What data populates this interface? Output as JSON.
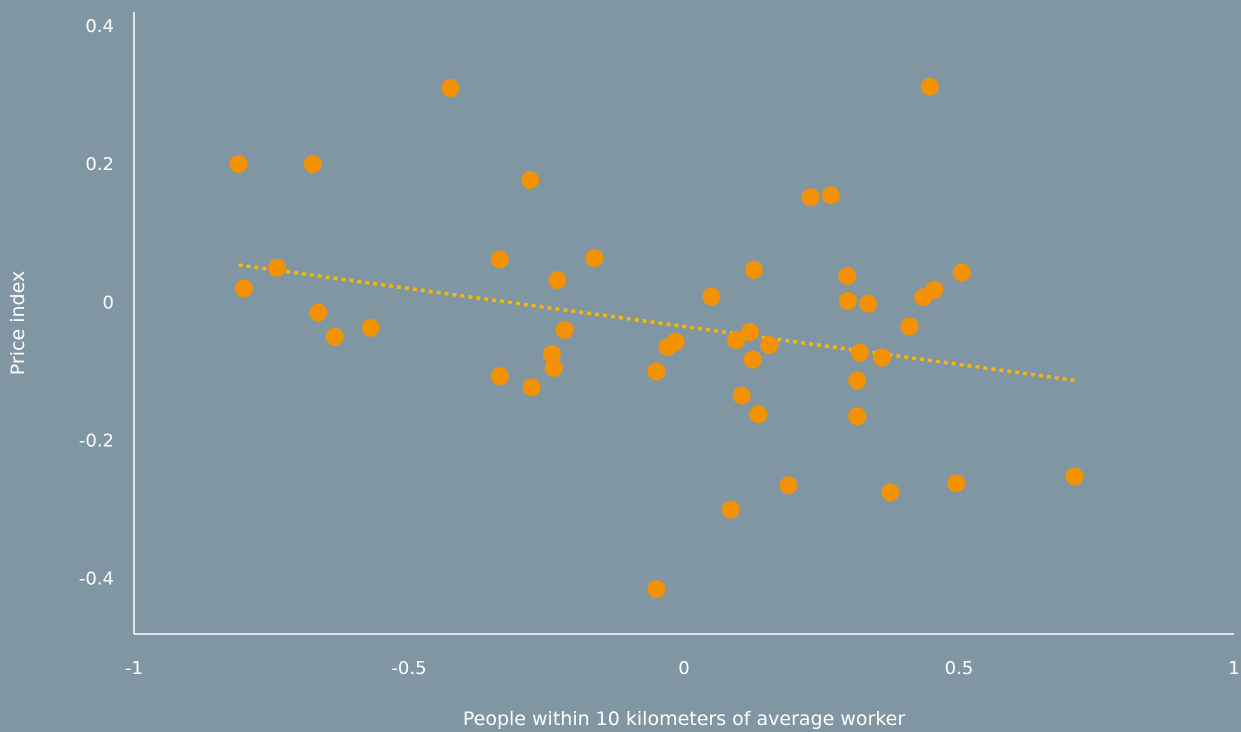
{
  "chart_data": {
    "type": "scatter",
    "title": "",
    "xlabel": "People within 10 kilometers of average worker",
    "ylabel": "Price index",
    "xlim": [
      -1,
      1
    ],
    "ylim": [
      -0.48,
      0.42
    ],
    "x_ticks": [
      -1,
      -0.5,
      0,
      0.5,
      1
    ],
    "x_tick_labels": [
      "-1",
      "-0.5",
      "0",
      "0.5",
      "1"
    ],
    "y_ticks": [
      0.4,
      0.2,
      0,
      -0.2,
      -0.4
    ],
    "y_tick_labels": [
      "0.4",
      "0.2",
      "0",
      "-0.2",
      "-0.4"
    ],
    "grid": false,
    "colors": {
      "points": "#f39200",
      "trendline": "#f5b800",
      "axes": "#ffffff",
      "background": "#8096a3"
    },
    "series": [
      {
        "points": [
          [
            -0.81,
            0.2
          ],
          [
            -0.8,
            0.02
          ],
          [
            -0.74,
            0.05
          ],
          [
            -0.675,
            0.2
          ],
          [
            -0.665,
            -0.015
          ],
          [
            -0.635,
            -0.05
          ],
          [
            -0.57,
            -0.037
          ],
          [
            -0.425,
            0.31
          ],
          [
            -0.335,
            0.062
          ],
          [
            -0.335,
            -0.107
          ],
          [
            -0.28,
            0.177
          ],
          [
            -0.277,
            -0.123
          ],
          [
            -0.24,
            -0.075
          ],
          [
            -0.237,
            -0.095
          ],
          [
            -0.23,
            0.032
          ],
          [
            -0.217,
            -0.04
          ],
          [
            -0.163,
            0.064
          ],
          [
            -0.05,
            -0.1
          ],
          [
            -0.05,
            -0.415
          ],
          [
            -0.03,
            -0.065
          ],
          [
            -0.015,
            -0.057
          ],
          [
            0.05,
            0.008
          ],
          [
            0.085,
            -0.3
          ],
          [
            0.095,
            -0.055
          ],
          [
            0.105,
            -0.135
          ],
          [
            0.12,
            -0.043
          ],
          [
            0.125,
            -0.083
          ],
          [
            0.127,
            0.047
          ],
          [
            0.135,
            -0.162
          ],
          [
            0.155,
            -0.062
          ],
          [
            0.19,
            -0.265
          ],
          [
            0.23,
            0.152
          ],
          [
            0.267,
            0.155
          ],
          [
            0.297,
            0.038
          ],
          [
            0.298,
            0.002
          ],
          [
            0.315,
            -0.113
          ],
          [
            0.315,
            -0.165
          ],
          [
            0.32,
            -0.073
          ],
          [
            0.335,
            -0.002
          ],
          [
            0.36,
            -0.08
          ],
          [
            0.375,
            -0.275
          ],
          [
            0.41,
            -0.035
          ],
          [
            0.435,
            0.007
          ],
          [
            0.447,
            0.312
          ],
          [
            0.455,
            0.018
          ],
          [
            0.495,
            -0.262
          ],
          [
            0.505,
            0.043
          ],
          [
            0.71,
            -0.252
          ]
        ]
      }
    ],
    "trendline": {
      "style": "dotted",
      "x": [
        -0.81,
        0.71
      ],
      "y": [
        0.054,
        -0.113
      ]
    }
  }
}
